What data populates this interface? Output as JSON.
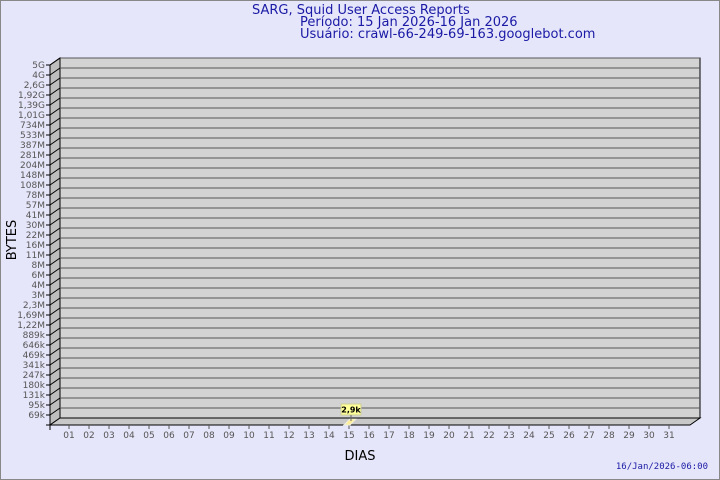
{
  "header": {
    "title": "SARG, Squid User Access Reports",
    "period": "Período: 15 Jan 2026-16 Jan 2026",
    "user": "Usuário: crawl-66-249-69-163.googlebot.com"
  },
  "footer": {
    "timestamp": "16/Jan/2026-06:00"
  },
  "colors": {
    "wall": "#d3d3d3",
    "side": "#bebebe",
    "bar": "#ffee99",
    "label_bg": "#ffff99",
    "title": "#1a1aa6"
  },
  "chart_data": {
    "type": "bar",
    "xlabel": "DIAS",
    "ylabel": "BYTES",
    "y_scale": "log",
    "grid": true,
    "y_ticks": [
      "5G",
      "4G",
      "2,6G",
      "1,92G",
      "1,39G",
      "1,01G",
      "734M",
      "533M",
      "387M",
      "281M",
      "204M",
      "148M",
      "108M",
      "78M",
      "57M",
      "41M",
      "30M",
      "22M",
      "16M",
      "11M",
      "8M",
      "6M",
      "4M",
      "3M",
      "2,3M",
      "1,69M",
      "1,22M",
      "889k",
      "646k",
      "469k",
      "341k",
      "247k",
      "180k",
      "131k",
      "95k",
      "69k"
    ],
    "categories": [
      "01",
      "02",
      "03",
      "04",
      "05",
      "06",
      "07",
      "08",
      "09",
      "10",
      "11",
      "12",
      "13",
      "14",
      "15",
      "16",
      "17",
      "18",
      "19",
      "20",
      "21",
      "22",
      "23",
      "24",
      "25",
      "26",
      "27",
      "28",
      "29",
      "30",
      "31"
    ],
    "values": [
      0,
      0,
      0,
      0,
      0,
      0,
      0,
      0,
      0,
      0,
      0,
      0,
      0,
      0,
      2900,
      0,
      0,
      0,
      0,
      0,
      0,
      0,
      0,
      0,
      0,
      0,
      0,
      0,
      0,
      0,
      0
    ],
    "data_labels": [
      {
        "category": "15",
        "label": "2,9k"
      }
    ]
  }
}
